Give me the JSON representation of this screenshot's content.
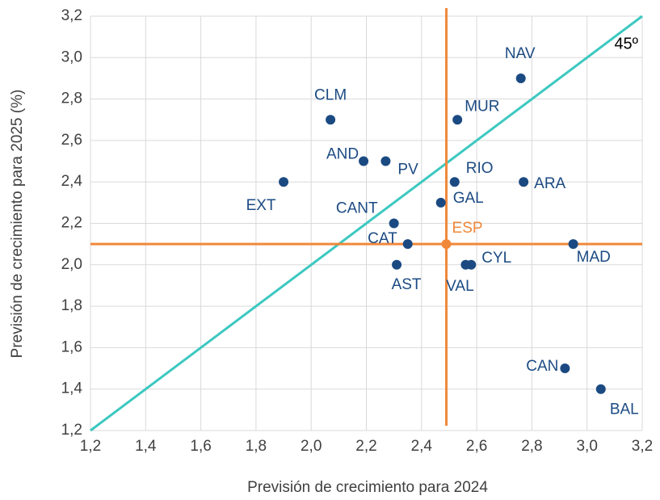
{
  "chart_data": {
    "type": "scatter",
    "xlabel": "Previsión de crecimiento para 2024",
    "ylabel": "Previsión de crecimiento para 2025 (%)",
    "labels": [
      "NAV",
      "CLM",
      "MUR",
      "AND",
      "PV",
      "EXT",
      "RIO",
      "ARA",
      "GAL",
      "CANT",
      "ESP",
      "CAT",
      "MAD",
      "AST",
      "VAL",
      "CYL",
      "CAN",
      "BAL"
    ],
    "x": [
      2.76,
      2.07,
      2.53,
      2.19,
      2.27,
      1.9,
      2.52,
      2.77,
      2.47,
      2.3,
      2.49,
      2.35,
      2.95,
      2.31,
      2.56,
      2.58,
      2.92,
      3.05
    ],
    "values": [
      2.9,
      2.7,
      2.7,
      2.5,
      2.5,
      2.4,
      2.4,
      2.4,
      2.3,
      2.2,
      2.1,
      2.1,
      2.1,
      2.0,
      2.0,
      2.0,
      1.5,
      1.4
    ],
    "colors": [
      "#1b4a82",
      "#1b4a82",
      "#1b4a82",
      "#1b4a82",
      "#1b4a82",
      "#1b4a82",
      "#1b4a82",
      "#1b4a82",
      "#1b4a82",
      "#1b4a82",
      "#f0883a",
      "#1b4a82",
      "#1b4a82",
      "#1b4a82",
      "#1b4a82",
      "#1b4a82",
      "#1b4a82",
      "#1b4a82"
    ],
    "reference_point_color": "#f0883a",
    "diagonal_label": "45º",
    "diagonal_color": "#3cc8c0",
    "xlim": [
      1.2,
      3.2
    ],
    "ylim": [
      1.2,
      3.2
    ],
    "xticks": [
      {
        "value": 1.2,
        "label": "1,2"
      },
      {
        "value": 1.4,
        "label": "1,4"
      },
      {
        "value": 1.6,
        "label": "1,6"
      },
      {
        "value": 1.8,
        "label": "1,8"
      },
      {
        "value": 2.0,
        "label": "2,0"
      },
      {
        "value": 2.2,
        "label": "2,2"
      },
      {
        "value": 2.4,
        "label": "2,4"
      },
      {
        "value": 2.6,
        "label": "2,6"
      },
      {
        "value": 2.8,
        "label": "2,8"
      },
      {
        "value": 3.0,
        "label": "3,0"
      },
      {
        "value": 3.2,
        "label": "3,2"
      }
    ],
    "yticks": [
      {
        "value": 1.2,
        "label": "1,2"
      },
      {
        "value": 1.4,
        "label": "1,4"
      },
      {
        "value": 1.6,
        "label": "1,6"
      },
      {
        "value": 1.8,
        "label": "1,8"
      },
      {
        "value": 2.0,
        "label": "2,0"
      },
      {
        "value": 2.2,
        "label": "2,2"
      },
      {
        "value": 2.4,
        "label": "2,4"
      },
      {
        "value": 2.6,
        "label": "2,6"
      },
      {
        "value": 2.8,
        "label": "2,8"
      },
      {
        "value": 3.0,
        "label": "3,0"
      },
      {
        "value": 3.2,
        "label": "3,2"
      }
    ],
    "grid": true
  }
}
